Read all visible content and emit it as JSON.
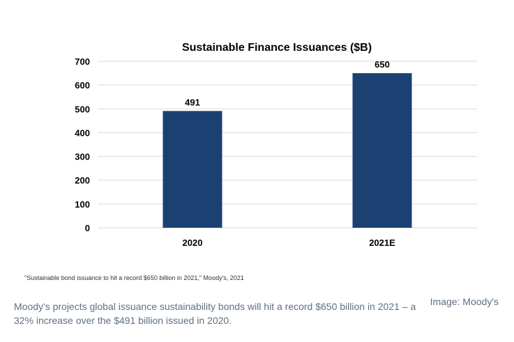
{
  "chart_data": {
    "type": "bar",
    "title": "Sustainable Finance Issuances ($B)",
    "categories": [
      "2020",
      "2021E"
    ],
    "values": [
      491,
      650
    ],
    "data_labels": [
      "491",
      "650"
    ],
    "ylim": [
      0,
      700
    ],
    "yticks": [
      0,
      100,
      200,
      300,
      400,
      500,
      600,
      700
    ],
    "grid": true,
    "bar_color": "#1b4173"
  },
  "source_note": "\"Sustainable bond issuance to hit a record $650 billion in 2021,\" Moody's, 2021",
  "caption": "Moody's projects global issuance sustainability bonds will hit a record $650 billion in 2021 – a 32% increase over the $491 billion issued in 2020.",
  "credit": "Image: Moody's"
}
